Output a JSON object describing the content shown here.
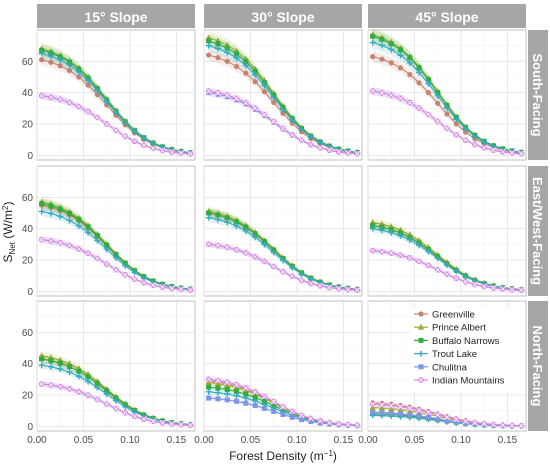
{
  "chart_data": {
    "type": "line",
    "facet_columns": [
      "15° Slope",
      "30° Slope",
      "45° Slope"
    ],
    "facet_rows": [
      "South-Facing",
      "East/West-Facing",
      "North-Facing"
    ],
    "ylabel_main": "S",
    "ylabel_sub": "Net",
    "ylabel_unit": "(W/m",
    "ylabel_sup": "2",
    "ylabel_end": ")",
    "xlabel_main": "Forest Density (m",
    "xlabel_sup": "−1",
    "xlabel_end": ")",
    "xlim": [
      0,
      0.17
    ],
    "ylim": [
      -3,
      80
    ],
    "x_ticks": [
      0.0,
      0.05,
      0.1,
      0.15
    ],
    "x_tick_labels": [
      "0.00",
      "0.05",
      "0.10",
      "0.15"
    ],
    "y_ticks": [
      0,
      20,
      40,
      60
    ],
    "y_tick_labels": [
      "0",
      "20",
      "40",
      "60"
    ],
    "x": [
      0.005,
      0.015,
      0.025,
      0.035,
      0.045,
      0.055,
      0.065,
      0.075,
      0.085,
      0.095,
      0.105,
      0.115,
      0.125,
      0.135,
      0.145,
      0.155,
      0.165
    ],
    "grid": true,
    "legend_position": "inside lower-right facet (north-facing, 45° slope)",
    "series": [
      {
        "name": "Greenville",
        "color": "#c8826e",
        "marker": "circle"
      },
      {
        "name": "Prince Albert",
        "color": "#a3a72b",
        "marker": "triangle"
      },
      {
        "name": "Buffalo Narrows",
        "color": "#2fac3b",
        "marker": "square"
      },
      {
        "name": "Trout Lake",
        "color": "#36aabf",
        "marker": "plus"
      },
      {
        "name": "Chulitna",
        "color": "#7f95e8",
        "marker": "square"
      },
      {
        "name": "Indian Mountains",
        "color": "#d98ae6",
        "marker": "square-x"
      }
    ],
    "panels": [
      [
        {
          "peaks": [
            61,
            68,
            67,
            65,
            38,
            38
          ]
        },
        {
          "peaks": [
            64,
            75,
            73,
            70,
            40,
            41
          ]
        },
        {
          "peaks": [
            63,
            77,
            76,
            72,
            41,
            41
          ]
        }
      ],
      [
        {
          "peaks": [
            55,
            57,
            56,
            51,
            33,
            33
          ]
        },
        {
          "peaks": [
            50,
            51,
            50,
            47,
            30,
            30
          ]
        },
        {
          "peaks": [
            42,
            44,
            42,
            40,
            26,
            26
          ]
        }
      ],
      [
        {
          "peaks": [
            43,
            45,
            43,
            39,
            27,
            27
          ]
        },
        {
          "peaks": [
            29,
            28,
            25,
            22,
            18,
            30
          ]
        },
        {
          "peaks": [
            15,
            12,
            8,
            7,
            9,
            14
          ]
        }
      ]
    ],
    "decay": {
      "midpoint": 0.075,
      "width": 0.024
    }
  }
}
